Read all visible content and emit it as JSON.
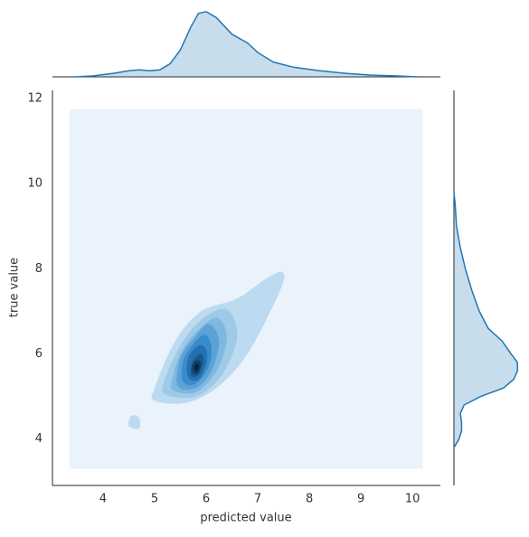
{
  "chart_data": {
    "type": "kde",
    "xlabel": "predicted value",
    "ylabel": "true value",
    "xlim": [
      3.02,
      10.54
    ],
    "ylim": [
      2.91,
      12.19
    ],
    "xticks": [
      4,
      5,
      6,
      7,
      8,
      9,
      10
    ],
    "yticks": [
      4,
      6,
      8,
      10,
      12
    ],
    "line_color": "#1f77b4",
    "contours": [
      {
        "color": "#eaf3fb",
        "x": [
          3.35,
          10.2,
          10.2,
          3.35
        ],
        "y": [
          3.3,
          3.3,
          11.75,
          11.75
        ]
      },
      {
        "color": "#bcdaf0",
        "x": [
          5.0,
          5.6,
          6.2,
          6.8,
          7.4,
          7.5,
          7.2,
          6.6,
          5.9,
          5.4,
          5.0
        ],
        "y": [
          4.9,
          4.85,
          5.2,
          6.0,
          7.4,
          7.9,
          7.8,
          7.3,
          7.0,
          6.3,
          5.2
        ]
      },
      {
        "color": "#bcdaf0",
        "x": [
          4.5,
          4.7,
          4.7,
          4.55
        ],
        "y": [
          4.3,
          4.25,
          4.5,
          4.55
        ]
      },
      {
        "color": "#9ecae8",
        "x": [
          5.2,
          5.8,
          6.3,
          6.6,
          6.4,
          5.9,
          5.5,
          5.2
        ],
        "y": [
          5.05,
          5.0,
          5.5,
          6.4,
          7.05,
          6.8,
          6.2,
          5.4
        ]
      },
      {
        "color": "#7db8e0",
        "x": [
          5.35,
          5.8,
          6.2,
          6.4,
          6.2,
          5.8,
          5.5,
          5.35
        ],
        "y": [
          5.15,
          5.1,
          5.6,
          6.4,
          6.85,
          6.5,
          6.0,
          5.45
        ]
      },
      {
        "color": "#5aa2d8",
        "x": [
          5.45,
          5.8,
          6.1,
          6.25,
          6.05,
          5.75,
          5.5
        ],
        "y": [
          5.25,
          5.2,
          5.6,
          6.3,
          6.7,
          6.35,
          5.9
        ]
      },
      {
        "color": "#3a8bcc",
        "x": [
          5.55,
          5.8,
          6.05,
          6.1,
          5.95,
          5.7,
          5.55
        ],
        "y": [
          5.35,
          5.3,
          5.7,
          6.2,
          6.45,
          6.15,
          5.8
        ]
      },
      {
        "color": "#2470b0",
        "x": [
          5.65,
          5.85,
          6.0,
          6.0,
          5.85,
          5.65
        ],
        "y": [
          5.45,
          5.4,
          5.75,
          6.1,
          6.2,
          5.9
        ]
      },
      {
        "color": "#165a92",
        "x": [
          5.7,
          5.85,
          5.95,
          5.9,
          5.75
        ],
        "y": [
          5.5,
          5.5,
          5.8,
          6.0,
          5.85
        ]
      },
      {
        "color": "#0f3f6a",
        "x": [
          5.75,
          5.85,
          5.9,
          5.8,
          5.72
        ],
        "y": [
          5.55,
          5.55,
          5.8,
          5.85,
          5.7
        ]
      },
      {
        "color": "#0a1f33",
        "x": [
          5.78,
          5.84,
          5.85,
          5.79
        ],
        "y": [
          5.62,
          5.62,
          5.75,
          5.74
        ]
      }
    ],
    "top_density": {
      "ylim": [
        0,
        0.78
      ],
      "x": [
        3.45,
        3.8,
        4.2,
        4.5,
        4.7,
        4.9,
        5.1,
        5.3,
        5.5,
        5.7,
        5.85,
        6.0,
        6.2,
        6.5,
        6.8,
        7.0,
        7.3,
        7.7,
        8.2,
        8.7,
        9.2,
        9.7,
        10.1
      ],
      "values": [
        0,
        0.01,
        0.04,
        0.07,
        0.08,
        0.07,
        0.08,
        0.15,
        0.31,
        0.57,
        0.73,
        0.75,
        0.68,
        0.49,
        0.39,
        0.28,
        0.17,
        0.11,
        0.07,
        0.04,
        0.02,
        0.01,
        0
      ]
    },
    "right_density": {
      "xlim": [
        0,
        0.52
      ],
      "y": [
        3.8,
        4.0,
        4.2,
        4.4,
        4.6,
        4.8,
        5.0,
        5.2,
        5.4,
        5.6,
        5.8,
        6.0,
        6.3,
        6.6,
        7.0,
        7.5,
        8.0,
        8.5,
        9.0,
        9.5,
        9.8
      ],
      "values": [
        0,
        0.04,
        0.06,
        0.06,
        0.05,
        0.08,
        0.21,
        0.39,
        0.47,
        0.5,
        0.5,
        0.45,
        0.38,
        0.27,
        0.2,
        0.14,
        0.09,
        0.05,
        0.02,
        0.01,
        0
      ]
    }
  }
}
